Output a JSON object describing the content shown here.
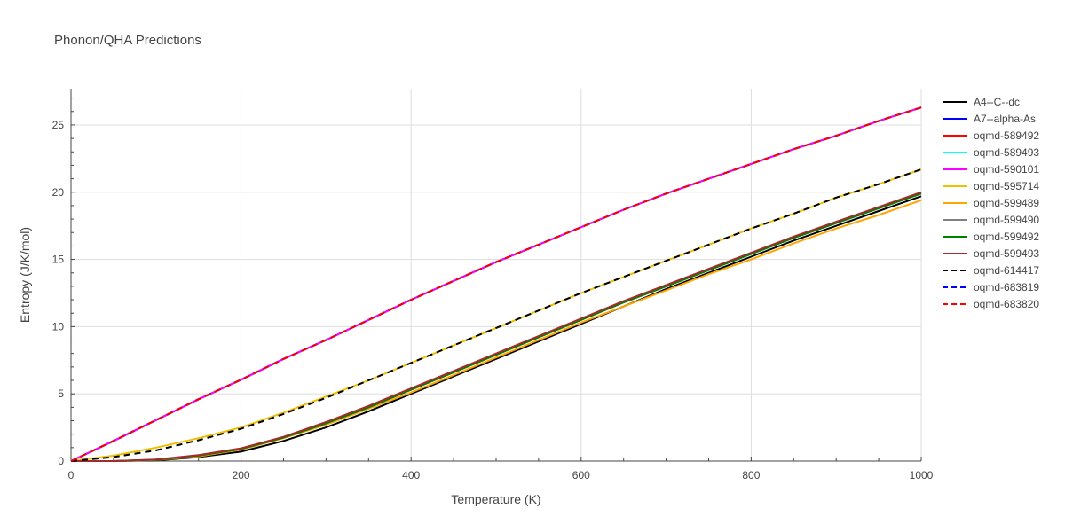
{
  "chart_data": {
    "type": "line",
    "title": "Phonon/QHA Predictions",
    "xlabel": "Temperature (K)",
    "ylabel": "Entropy (J/K/mol)",
    "xlim": [
      0,
      1000
    ],
    "ylim": [
      0,
      27.7
    ],
    "xticks": [
      0,
      200,
      400,
      600,
      800,
      1000
    ],
    "yticks": [
      0,
      5,
      10,
      15,
      20,
      25
    ],
    "grid": true,
    "legend_position": "right",
    "series": [
      {
        "name": "A4--C--dc",
        "color": "#000000",
        "dash": "solid",
        "x": [
          0,
          50,
          100,
          150,
          200,
          250,
          300,
          350,
          400,
          450,
          500,
          550,
          600,
          650,
          700,
          750,
          800,
          850,
          900,
          950,
          1000
        ],
        "y": [
          0,
          0,
          0.05,
          0.3,
          0.7,
          1.5,
          2.5,
          3.7,
          5.0,
          6.3,
          7.6,
          8.9,
          10.2,
          11.5,
          12.8,
          14.0,
          15.2,
          16.4,
          17.5,
          18.6,
          19.7
        ]
      },
      {
        "name": "A7--alpha-As",
        "color": "#0000ff",
        "dash": "solid",
        "x": [
          0,
          50,
          100,
          150,
          200,
          250,
          300,
          350,
          400,
          450,
          500,
          550,
          600,
          650,
          700,
          750,
          800,
          850,
          900,
          950,
          1000
        ],
        "y": [
          0,
          1.5,
          3.05,
          4.6,
          6.05,
          7.6,
          9.0,
          10.5,
          12.0,
          13.4,
          14.8,
          16.1,
          17.4,
          18.7,
          19.9,
          21.0,
          22.1,
          23.2,
          24.2,
          25.3,
          26.3
        ]
      },
      {
        "name": "oqmd-589492",
        "color": "#ff0000",
        "dash": "solid",
        "x": [
          0,
          50,
          100,
          150,
          200,
          250,
          300,
          350,
          400,
          450,
          500,
          550,
          600,
          650,
          700,
          750,
          800,
          850,
          900,
          950,
          1000
        ],
        "y": [
          0,
          1.5,
          3.05,
          4.6,
          6.05,
          7.6,
          9.0,
          10.5,
          12.0,
          13.4,
          14.8,
          16.1,
          17.4,
          18.7,
          19.9,
          21.0,
          22.1,
          23.2,
          24.2,
          25.3,
          26.3
        ]
      },
      {
        "name": "oqmd-589493",
        "color": "#00ffff",
        "dash": "solid",
        "x": [
          0,
          50,
          100,
          150,
          200,
          250,
          300,
          350,
          400,
          450,
          500,
          550,
          600,
          650,
          700,
          750,
          800,
          850,
          900,
          950,
          1000
        ],
        "y": [
          0,
          1.5,
          3.05,
          4.6,
          6.05,
          7.6,
          9.0,
          10.5,
          12.0,
          13.4,
          14.8,
          16.1,
          17.4,
          18.7,
          19.9,
          21.0,
          22.1,
          23.2,
          24.2,
          25.3,
          26.3
        ]
      },
      {
        "name": "oqmd-590101",
        "color": "#ff00ff",
        "dash": "solid",
        "x": [
          0,
          50,
          100,
          150,
          200,
          250,
          300,
          350,
          400,
          450,
          500,
          550,
          600,
          650,
          700,
          750,
          800,
          850,
          900,
          950,
          1000
        ],
        "y": [
          0,
          1.5,
          3.05,
          4.6,
          6.05,
          7.6,
          9.0,
          10.5,
          12.0,
          13.4,
          14.8,
          16.1,
          17.4,
          18.7,
          19.9,
          21.0,
          22.1,
          23.2,
          24.2,
          25.3,
          26.3
        ]
      },
      {
        "name": "oqmd-595714",
        "color": "#f0c000",
        "dash": "solid",
        "x": [
          0,
          50,
          100,
          150,
          200,
          250,
          300,
          350,
          400,
          450,
          500,
          550,
          600,
          650,
          700,
          750,
          800,
          850,
          900,
          950,
          1000
        ],
        "y": [
          0,
          0.4,
          1.0,
          1.7,
          2.5,
          3.6,
          4.8,
          6.0,
          7.3,
          8.6,
          9.9,
          11.2,
          12.5,
          13.7,
          14.9,
          16.1,
          17.3,
          18.4,
          19.6,
          20.6,
          21.7
        ]
      },
      {
        "name": "oqmd-599489",
        "color": "#ffa500",
        "dash": "solid",
        "x": [
          0,
          50,
          100,
          150,
          200,
          250,
          300,
          350,
          400,
          450,
          500,
          550,
          600,
          650,
          700,
          750,
          800,
          850,
          900,
          950,
          1000
        ],
        "y": [
          0,
          0,
          0.08,
          0.35,
          0.85,
          1.7,
          2.7,
          3.9,
          5.1,
          6.4,
          7.7,
          9.0,
          10.3,
          11.5,
          12.7,
          13.9,
          15.0,
          16.2,
          17.3,
          18.3,
          19.4
        ]
      },
      {
        "name": "oqmd-599490",
        "color": "#808080",
        "dash": "solid",
        "x": [
          0,
          50,
          100,
          150,
          200,
          250,
          300,
          350,
          400,
          450,
          500,
          550,
          600,
          650,
          700,
          750,
          800,
          850,
          900,
          950,
          1000
        ],
        "y": [
          0,
          0,
          0.1,
          0.4,
          0.9,
          1.75,
          2.8,
          4.0,
          5.3,
          6.6,
          7.9,
          9.2,
          10.5,
          11.8,
          13.0,
          14.2,
          15.4,
          16.6,
          17.7,
          18.8,
          19.9
        ]
      },
      {
        "name": "oqmd-599492",
        "color": "#008000",
        "dash": "solid",
        "x": [
          0,
          50,
          100,
          150,
          200,
          250,
          300,
          350,
          400,
          450,
          500,
          550,
          600,
          650,
          700,
          750,
          800,
          850,
          900,
          950,
          1000
        ],
        "y": [
          0,
          0,
          0.1,
          0.4,
          0.9,
          1.75,
          2.8,
          4.0,
          5.3,
          6.6,
          7.9,
          9.2,
          10.5,
          11.8,
          13.0,
          14.2,
          15.4,
          16.6,
          17.7,
          18.8,
          19.9
        ]
      },
      {
        "name": "oqmd-599493",
        "color": "#a52a2a",
        "dash": "solid",
        "x": [
          0,
          50,
          100,
          150,
          200,
          250,
          300,
          350,
          400,
          450,
          500,
          550,
          600,
          650,
          700,
          750,
          800,
          850,
          900,
          950,
          1000
        ],
        "y": [
          0,
          0,
          0.12,
          0.45,
          0.95,
          1.8,
          2.9,
          4.1,
          5.4,
          6.7,
          8.0,
          9.3,
          10.6,
          11.9,
          13.1,
          14.3,
          15.5,
          16.7,
          17.8,
          18.9,
          20.0
        ]
      },
      {
        "name": "oqmd-614417",
        "color": "#000000",
        "dash": "dash",
        "x": [
          0,
          50,
          100,
          150,
          200,
          250,
          300,
          350,
          400,
          450,
          500,
          550,
          600,
          650,
          700,
          750,
          800,
          850,
          900,
          950,
          1000
        ],
        "y": [
          0,
          0.3,
          0.8,
          1.55,
          2.4,
          3.5,
          4.7,
          6.0,
          7.3,
          8.6,
          9.9,
          11.2,
          12.5,
          13.7,
          14.9,
          16.1,
          17.3,
          18.4,
          19.6,
          20.6,
          21.7
        ]
      },
      {
        "name": "oqmd-683819",
        "color": "#0000ff",
        "dash": "dash",
        "x": [
          0,
          50,
          100,
          150,
          200,
          250,
          300,
          350,
          400,
          450,
          500,
          550,
          600,
          650,
          700,
          750,
          800,
          850,
          900,
          950,
          1000
        ],
        "y": [
          0,
          1.5,
          3.05,
          4.6,
          6.05,
          7.6,
          9.0,
          10.5,
          12.0,
          13.4,
          14.8,
          16.1,
          17.4,
          18.7,
          19.9,
          21.0,
          22.1,
          23.2,
          24.2,
          25.3,
          26.3
        ]
      },
      {
        "name": "oqmd-683820",
        "color": "#ff0000",
        "dash": "dash",
        "x": [
          0,
          50,
          100,
          150,
          200,
          250,
          300,
          350,
          400,
          450,
          500,
          550,
          600,
          650,
          700,
          750,
          800,
          850,
          900,
          950,
          1000
        ],
        "y": [
          0,
          1.5,
          3.05,
          4.6,
          6.05,
          7.6,
          9.0,
          10.5,
          12.0,
          13.4,
          14.8,
          16.1,
          17.4,
          18.7,
          19.9,
          21.0,
          22.1,
          23.2,
          24.2,
          25.3,
          26.3
        ]
      }
    ]
  }
}
